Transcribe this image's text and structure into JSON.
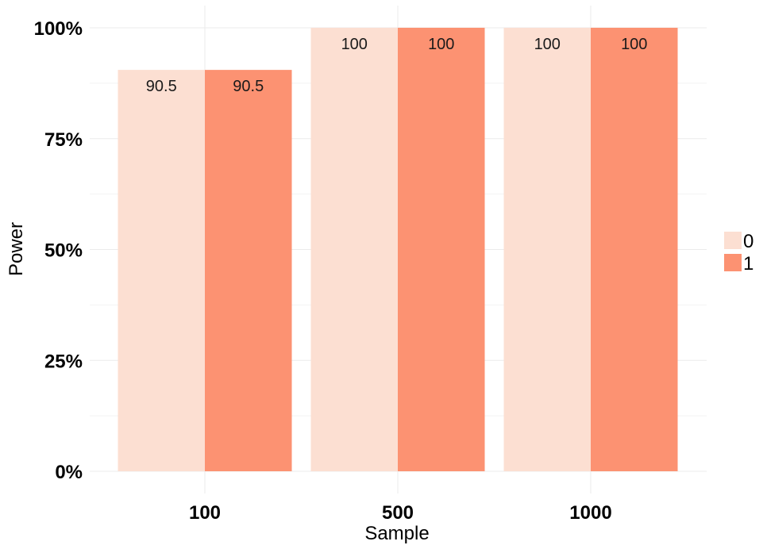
{
  "chart_data": {
    "type": "bar",
    "xlabel": "Sample",
    "ylabel": "Power",
    "categories": [
      "100",
      "500",
      "1000"
    ],
    "series": [
      {
        "name": "0",
        "values": [
          90.5,
          100,
          100
        ],
        "color": "#FCDFD2"
      },
      {
        "name": "1",
        "values": [
          90.5,
          100,
          100
        ],
        "color": "#FC9272"
      }
    ],
    "ylim": [
      0,
      100
    ],
    "yticks": [
      0,
      25,
      50,
      75,
      100
    ],
    "ytick_labels": [
      "0%",
      "25%",
      "50%",
      "75%",
      "100%"
    ],
    "data_labels": [
      [
        "90.5",
        "100",
        "100"
      ],
      [
        "90.5",
        "100",
        "100"
      ]
    ],
    "legend": {
      "entries": [
        "0",
        "1"
      ],
      "position": "right"
    },
    "grid": true
  }
}
